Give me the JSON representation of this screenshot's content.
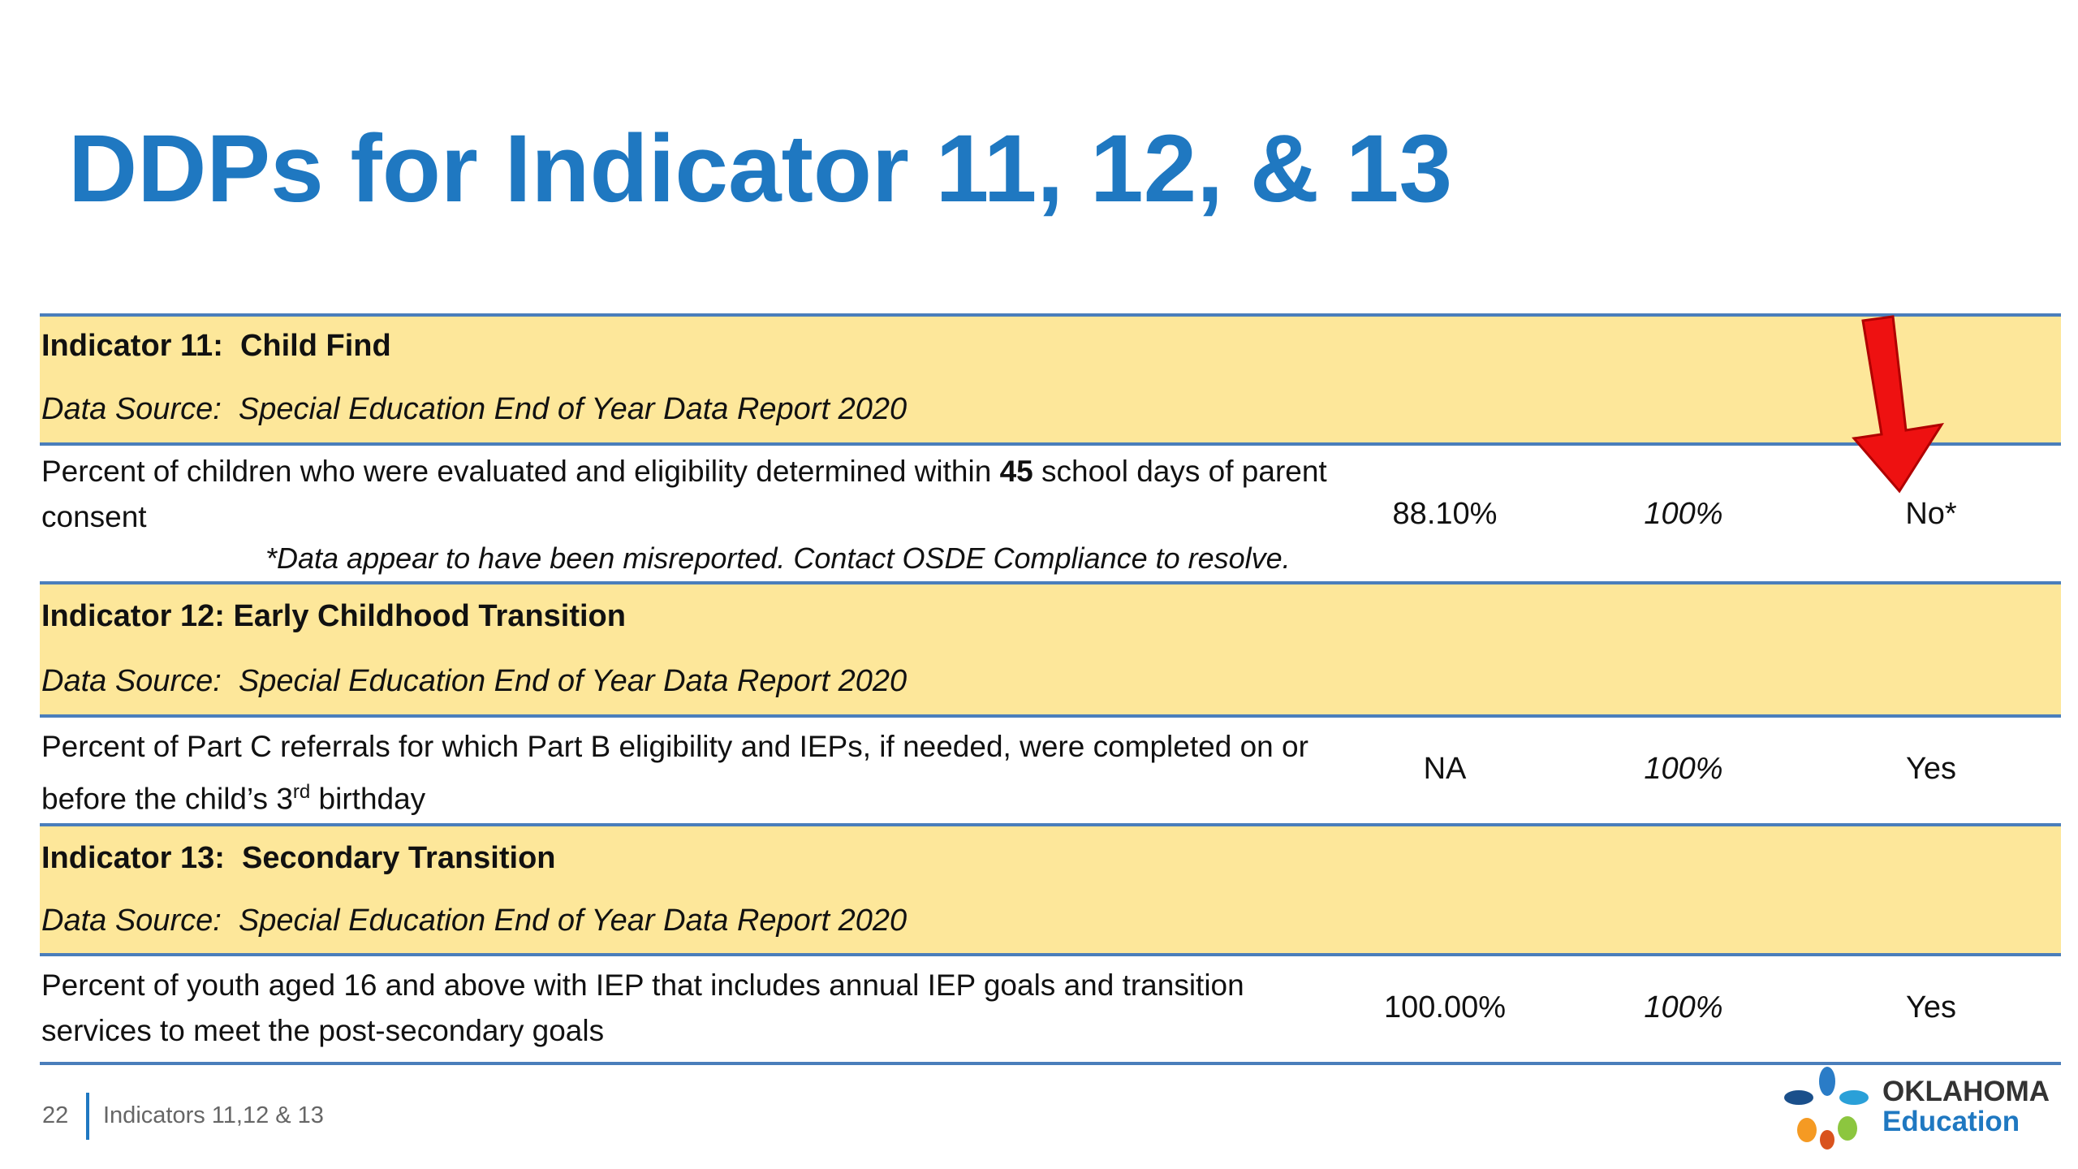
{
  "title": "DDPs for Indicator 11, 12, & 13",
  "sections": [
    {
      "header": "Indicator 11:  Child Find",
      "source_label": "Data Source:",
      "source": "Special Education End of Year Data Report 2020",
      "description": [
        "Percent of children who were evaluated and eligibility determined within ",
        "45",
        " school days of parent consent"
      ],
      "note": "*Data appear to have been misreported. Contact OSDE Compliance to resolve.",
      "value": "88.10%",
      "target": "100%",
      "met": "No*"
    },
    {
      "header": "Indicator 12: Early Childhood Transition",
      "source_label": "Data Source:",
      "source": "Special Education End of Year Data Report 2020",
      "description": [
        "Percent of Part C referrals for which Part B eligibility and IEPs, if needed, were completed on or before the child’s 3",
        "rd",
        " birthday"
      ],
      "value": "NA",
      "target": "100%",
      "met": "Yes"
    },
    {
      "header": "Indicator 13:  Secondary Transition",
      "source_label": "Data Source:",
      "source": "Special Education End of Year Data Report 2020",
      "description": [
        "Percent of youth aged 16 and above with IEP that includes annual IEP goals and transition services to meet the post-secondary goals"
      ],
      "value": "100.00%",
      "target": "100%",
      "met": "Yes"
    }
  ],
  "footer": {
    "page": "22",
    "label": "Indicators 11,12 & 13",
    "logo": [
      "OKLAHOMA",
      "Education"
    ]
  }
}
